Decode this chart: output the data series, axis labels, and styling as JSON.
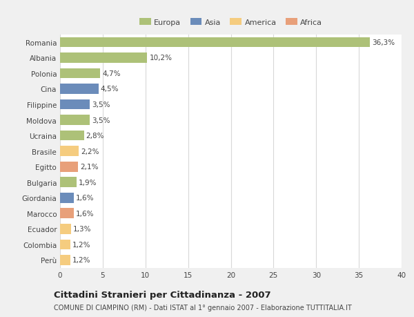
{
  "categories": [
    "Romania",
    "Albania",
    "Polonia",
    "Cina",
    "Filippine",
    "Moldova",
    "Ucraina",
    "Brasile",
    "Egitto",
    "Bulgaria",
    "Giordania",
    "Marocco",
    "Ecuador",
    "Colombia",
    "Perù"
  ],
  "values": [
    36.3,
    10.2,
    4.7,
    4.5,
    3.5,
    3.5,
    2.8,
    2.2,
    2.1,
    1.9,
    1.6,
    1.6,
    1.3,
    1.2,
    1.2
  ],
  "labels": [
    "36,3%",
    "10,2%",
    "4,7%",
    "4,5%",
    "3,5%",
    "3,5%",
    "2,8%",
    "2,2%",
    "2,1%",
    "1,9%",
    "1,6%",
    "1,6%",
    "1,3%",
    "1,2%",
    "1,2%"
  ],
  "colors": [
    "#adc178",
    "#adc178",
    "#adc178",
    "#6b8cba",
    "#6b8cba",
    "#adc178",
    "#adc178",
    "#f5cc7f",
    "#e8a07a",
    "#adc178",
    "#6b8cba",
    "#e8a07a",
    "#f5cc7f",
    "#f5cc7f",
    "#f5cc7f"
  ],
  "legend_labels": [
    "Europa",
    "Asia",
    "America",
    "Africa"
  ],
  "legend_colors": [
    "#adc178",
    "#6b8cba",
    "#f5cc7f",
    "#e8a07a"
  ],
  "title": "Cittadini Stranieri per Cittadinanza - 2007",
  "subtitle": "COMUNE DI CIAMPINO (RM) - Dati ISTAT al 1° gennaio 2007 - Elaborazione TUTTITALIA.IT",
  "xlim": [
    0,
    40
  ],
  "xticks": [
    0,
    5,
    10,
    15,
    20,
    25,
    30,
    35,
    40
  ],
  "background_color": "#f0f0f0",
  "bar_area_color": "#ffffff",
  "grid_color": "#d8d8d8",
  "text_color": "#444444",
  "label_fontsize": 7.5,
  "tick_fontsize": 7.5,
  "title_fontsize": 9.5,
  "subtitle_fontsize": 7.0,
  "legend_fontsize": 8.0
}
